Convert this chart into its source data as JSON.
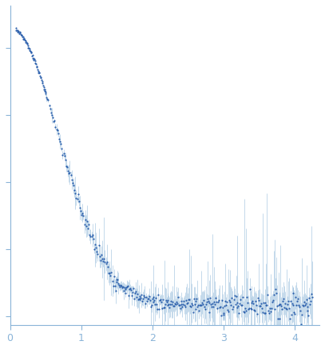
{
  "dot_color": "#2b5fac",
  "error_color": "#8ab4d8",
  "background_color": "#ffffff",
  "axis_color": "#8ab4d8",
  "tick_color": "#8ab4d8",
  "xlim": [
    0,
    4.35
  ],
  "ylim": [
    -0.05,
    1.85
  ],
  "xticks": [
    0,
    1,
    2,
    3,
    4
  ],
  "yticks": [
    0.0,
    0.4,
    0.8,
    1.2,
    1.6
  ],
  "marker_size": 2.5,
  "elinewidth": 0.5
}
